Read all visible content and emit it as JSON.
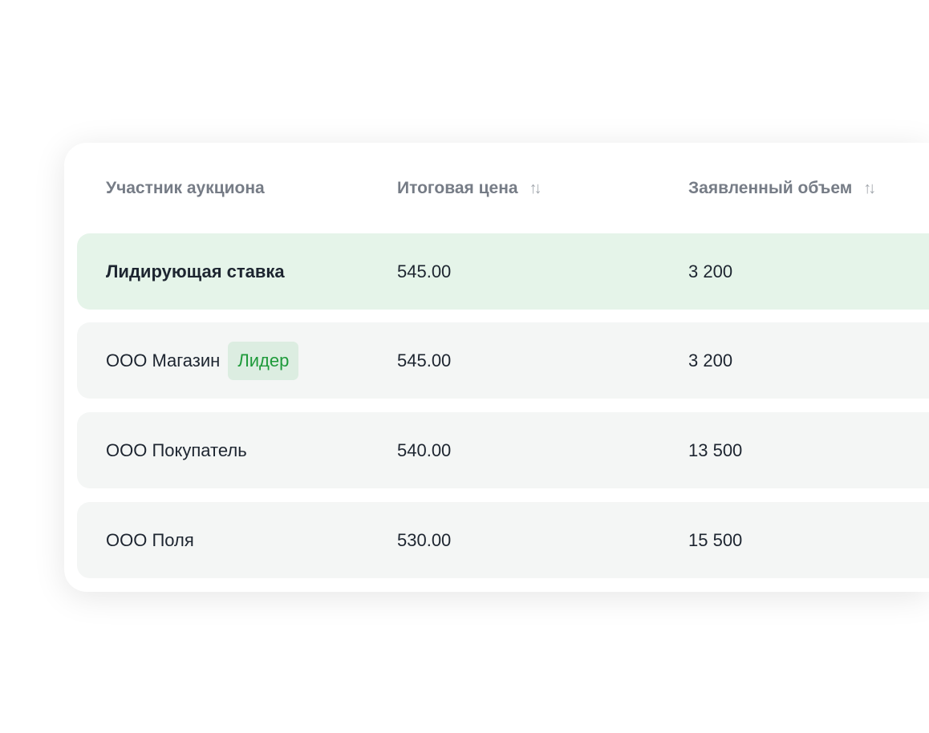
{
  "table": {
    "headers": [
      {
        "label": "Участник аукциона",
        "sortable": false
      },
      {
        "label": "Итоговая цена",
        "sortable": true,
        "icon": "sort-arrows-icon"
      },
      {
        "label": "Заявленный объем",
        "sortable": true,
        "icon": "sort-arrows-icon"
      }
    ],
    "rows": [
      {
        "participant": "Лидирующая ставка",
        "price": "545.00",
        "volume": "3 200",
        "highlighted": true
      },
      {
        "participant": "ООО Магазин",
        "badge": "Лидер",
        "price": "545.00",
        "volume": "3 200"
      },
      {
        "participant": "ООО Покупатель",
        "price": "540.00",
        "volume": "13 500"
      },
      {
        "participant": "ООО Поля",
        "price": "530.00",
        "volume": "15 500"
      }
    ]
  },
  "colors": {
    "highlight_row": "#e5f4e9",
    "row": "#f4f6f5",
    "badge_text": "#1e9a3a",
    "badge_bg": "#dcede1"
  }
}
